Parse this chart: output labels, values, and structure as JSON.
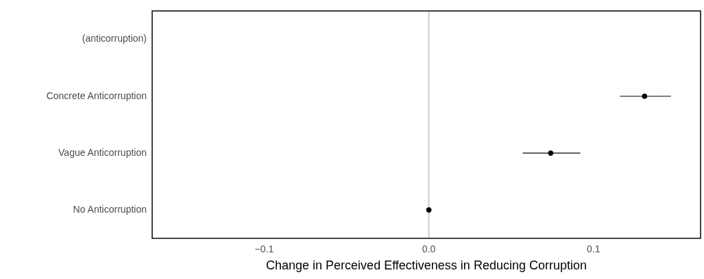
{
  "chart_data": {
    "type": "scatter",
    "orientation": "horizontal",
    "categories": [
      "(anticorruption)",
      "Concrete Anticorruption",
      "Vague Anticorruption",
      "No Anticorruption"
    ],
    "series": [
      {
        "color": "#000000",
        "values": [
          null,
          0.131,
          0.074,
          0
        ],
        "errors": [
          null,
          [
            0.116,
            0.147
          ],
          [
            0.057,
            0.092
          ],
          null
        ]
      }
    ],
    "xlabel": "Change in Perceived Effectiveness in Reducing Corruption",
    "xlim": [
      -0.168,
      0.165
    ],
    "xticks": [
      {
        "value": -0.1,
        "label": "−0.1"
      },
      {
        "value": 0,
        "label": "0.0"
      },
      {
        "value": 0.1,
        "label": "0.1"
      }
    ],
    "ref_lines": [
      {
        "axis": "x",
        "value": 0,
        "color": "#bebebe"
      }
    ],
    "grid": false,
    "legend": false,
    "marker": "circle"
  }
}
